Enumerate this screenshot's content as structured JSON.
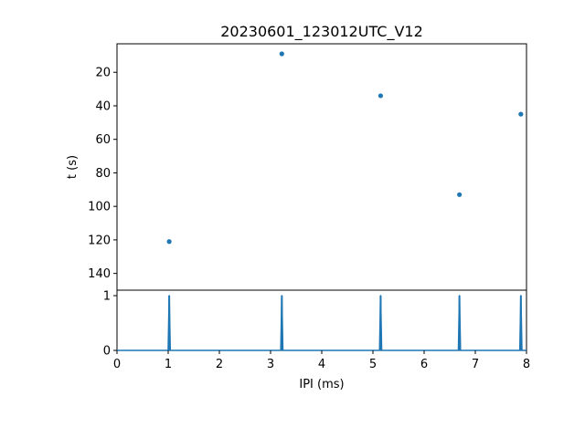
{
  "chart_data": {
    "type": "scatter",
    "title": "20230601_123012UTC_V12",
    "accent_color": "#1f77b4",
    "top_panel": {
      "type": "scatter",
      "ylabel": "t (s)",
      "y_inverted": true,
      "ylim": [
        150,
        3
      ],
      "yticks": [
        20,
        40,
        60,
        80,
        100,
        120,
        140
      ],
      "points": [
        {
          "x": 1.02,
          "y": 121
        },
        {
          "x": 3.22,
          "y": 9
        },
        {
          "x": 5.15,
          "y": 34
        },
        {
          "x": 6.69,
          "y": 93
        },
        {
          "x": 7.89,
          "y": 45
        }
      ]
    },
    "bottom_panel": {
      "type": "line",
      "xlabel": "IPI (ms)",
      "ylim": [
        0,
        1.1
      ],
      "yticks": [
        0,
        1
      ],
      "spikes": [
        1.02,
        3.22,
        5.15,
        6.69,
        7.89
      ],
      "spike_height": 1
    },
    "xlim": [
      0,
      8
    ],
    "xticks": [
      0,
      1,
      2,
      3,
      4,
      5,
      6,
      7,
      8
    ]
  }
}
